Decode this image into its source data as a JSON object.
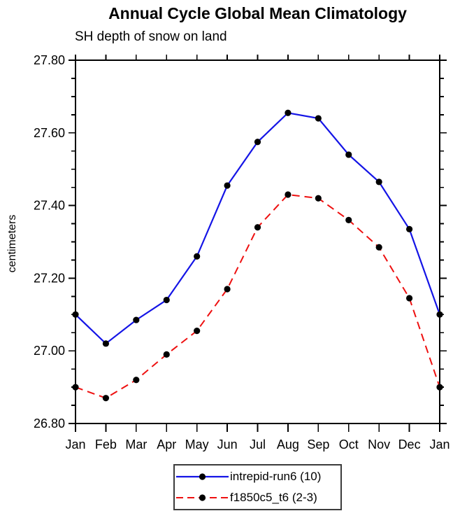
{
  "title": "Annual Cycle Global Mean Climatology",
  "subtitle": "SH depth of snow on land",
  "chart_data": {
    "type": "line",
    "categories": [
      "Jan",
      "Feb",
      "Mar",
      "Apr",
      "May",
      "Jun",
      "Jul",
      "Aug",
      "Sep",
      "Oct",
      "Nov",
      "Dec",
      "Jan"
    ],
    "series": [
      {
        "name": "intrepid-run6 (10)",
        "color": "#1414E6",
        "line_style": "solid",
        "line_width": 2.2,
        "marker": "filled-circle",
        "marker_color": "#000000",
        "values": [
          27.1,
          27.02,
          27.085,
          27.14,
          27.26,
          27.455,
          27.575,
          27.655,
          27.64,
          27.54,
          27.465,
          27.335,
          27.1
        ]
      },
      {
        "name": "f1850c5_t6 (2-3)",
        "color": "#EE1010",
        "line_style": "dashed",
        "line_width": 2,
        "marker": "filled-circle",
        "marker_color": "#000000",
        "values": [
          26.9,
          26.87,
          26.92,
          26.99,
          27.055,
          27.17,
          27.34,
          27.43,
          27.42,
          27.36,
          27.285,
          27.145,
          26.9
        ]
      }
    ],
    "xlabel": "",
    "ylabel": "centimeters",
    "ylim": [
      26.8,
      27.8
    ],
    "ytick_major": [
      26.8,
      27.0,
      27.2,
      27.4,
      27.6,
      27.8
    ],
    "ytick_labels": [
      "26.80",
      "27.00",
      "27.20",
      "27.40",
      "27.60",
      "27.80"
    ],
    "ytick_minor_step": 0.05,
    "grid": false,
    "legend_position": "bottom-center",
    "axis_color": "#000000"
  }
}
